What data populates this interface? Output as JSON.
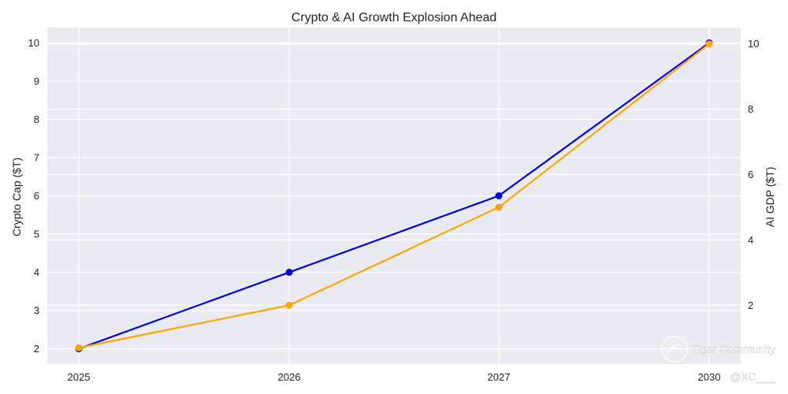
{
  "chart_data": {
    "type": "line",
    "title": "Crypto & AI Growth Explosion Ahead",
    "categories": [
      "2025",
      "2026",
      "2027",
      "2030"
    ],
    "ylabel_left": "Crypto Cap ($T)",
    "ylabel_right": "AI GDP ($T)",
    "xlabel": "",
    "ylim_left": [
      1.6,
      10.4
    ],
    "yticks_left": [
      2,
      3,
      4,
      5,
      6,
      7,
      8,
      9,
      10
    ],
    "ylim_right": [
      0.2,
      10.5
    ],
    "yticks_right": [
      2,
      4,
      6,
      8,
      10
    ],
    "grid": true,
    "series": [
      {
        "name": "Crypto Cap ($T)",
        "axis": "left",
        "color": "#0000dd",
        "values": [
          2,
          4,
          6,
          10
        ]
      },
      {
        "name": "AI GDP ($T)",
        "axis": "right",
        "color": "#ffa500",
        "values": [
          0.7,
          2.0,
          5.0,
          10.0
        ]
      }
    ],
    "plot_background": "#eaeaf2"
  },
  "watermark": {
    "brand": "Tiger Community",
    "handle": "@XC___"
  }
}
